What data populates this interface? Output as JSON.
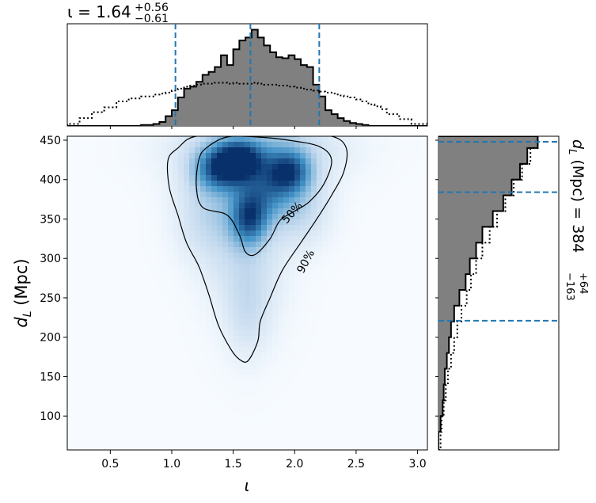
{
  "chart_data": {
    "type": "corner",
    "title_parts": {
      "symbol": "ι = 1.64",
      "upper": "+0.56",
      "lower": "−0.61"
    },
    "xlabel": "ι",
    "ylabel_main": "d",
    "ylabel_sub": "L",
    "ylabel_units": "(Mpc)",
    "right_label_parts": {
      "prefix_main": "d",
      "prefix_sub": "L",
      "prefix_rest": " (Mpc) = 384",
      "upper": "+64",
      "lower": "−163"
    },
    "xlim": [
      0.15,
      3.08
    ],
    "ylim": [
      57,
      455
    ],
    "xticks": [
      0.5,
      1.0,
      1.5,
      2.0,
      2.5,
      3.0
    ],
    "xtick_labels": [
      "0.5",
      "1.0",
      "1.5",
      "2.0",
      "2.5",
      "3.0"
    ],
    "yticks": [
      100,
      150,
      200,
      250,
      300,
      350,
      400,
      450
    ],
    "ytick_labels": [
      "100",
      "150",
      "200",
      "250",
      "300",
      "350",
      "400",
      "450"
    ],
    "iota_quantiles": [
      1.03,
      1.64,
      2.2
    ],
    "dl_quantiles": [
      221,
      384,
      448
    ],
    "contour_labels": [
      "50%",
      "90%"
    ],
    "contour_50": [
      [
        1.28,
        440
      ],
      [
        1.45,
        454
      ],
      [
        1.7,
        454
      ],
      [
        1.95,
        450
      ],
      [
        2.2,
        442
      ],
      [
        2.3,
        425
      ],
      [
        2.24,
        395
      ],
      [
        2.12,
        372
      ],
      [
        2.0,
        360
      ],
      [
        1.88,
        348
      ],
      [
        1.8,
        325
      ],
      [
        1.68,
        305
      ],
      [
        1.6,
        308
      ],
      [
        1.55,
        330
      ],
      [
        1.45,
        355
      ],
      [
        1.25,
        365
      ],
      [
        1.2,
        392
      ],
      [
        1.22,
        425
      ]
    ],
    "contour_90": [
      [
        1.05,
        440
      ],
      [
        1.2,
        455
      ],
      [
        1.6,
        455
      ],
      [
        2.0,
        455
      ],
      [
        2.3,
        455
      ],
      [
        2.42,
        440
      ],
      [
        2.4,
        410
      ],
      [
        2.3,
        380
      ],
      [
        2.18,
        350
      ],
      [
        2.05,
        320
      ],
      [
        1.9,
        285
      ],
      [
        1.8,
        250
      ],
      [
        1.72,
        220
      ],
      [
        1.7,
        195
      ],
      [
        1.62,
        170
      ],
      [
        1.55,
        172
      ],
      [
        1.48,
        185
      ],
      [
        1.38,
        215
      ],
      [
        1.3,
        255
      ],
      [
        1.22,
        290
      ],
      [
        1.12,
        320
      ],
      [
        1.05,
        355
      ],
      [
        0.98,
        390
      ],
      [
        0.97,
        425
      ]
    ],
    "iota_hist_bins": [
      0.15,
      0.25,
      0.35,
      0.45,
      0.55,
      0.65,
      0.75,
      0.85,
      0.9,
      0.95,
      1.0,
      1.05,
      1.1,
      1.15,
      1.2,
      1.25,
      1.3,
      1.35,
      1.4,
      1.45,
      1.5,
      1.55,
      1.6,
      1.65,
      1.7,
      1.75,
      1.8,
      1.85,
      1.9,
      1.95,
      2.0,
      2.05,
      2.1,
      2.15,
      2.2,
      2.25,
      2.3,
      2.35,
      2.4,
      2.45,
      2.5,
      2.55,
      2.6,
      2.65,
      2.7,
      2.75,
      2.85,
      2.95,
      3.08
    ],
    "iota_posterior_density": [
      0,
      0,
      0,
      0,
      0,
      0,
      0.01,
      0.02,
      0.04,
      0.1,
      0.16,
      0.29,
      0.38,
      0.4,
      0.45,
      0.52,
      0.55,
      0.6,
      0.72,
      0.62,
      0.78,
      0.87,
      0.9,
      0.98,
      0.9,
      0.82,
      0.75,
      0.7,
      0.69,
      0.72,
      0.68,
      0.62,
      0.6,
      0.42,
      0.3,
      0.16,
      0.12,
      0.08,
      0.05,
      0.03,
      0.02,
      0.01,
      0,
      0,
      0,
      0,
      0,
      0
    ],
    "iota_prior_density": [
      0.02,
      0.08,
      0.14,
      0.19,
      0.25,
      0.28,
      0.3,
      0.32,
      0.33,
      0.34,
      0.36,
      0.38,
      0.4,
      0.41,
      0.42,
      0.43,
      0.43,
      0.44,
      0.44,
      0.43,
      0.44,
      0.43,
      0.43,
      0.44,
      0.43,
      0.42,
      0.42,
      0.41,
      0.41,
      0.4,
      0.39,
      0.38,
      0.37,
      0.36,
      0.35,
      0.34,
      0.33,
      0.31,
      0.3,
      0.29,
      0.27,
      0.25,
      0.22,
      0.2,
      0.17,
      0.12,
      0.07,
      0.02
    ],
    "dl_hist_bins": [
      57,
      80,
      100,
      120,
      140,
      160,
      180,
      200,
      220,
      240,
      260,
      280,
      300,
      320,
      340,
      360,
      380,
      400,
      420,
      440,
      455
    ],
    "dl_posterior_density": [
      0.0,
      0.02,
      0.04,
      0.05,
      0.06,
      0.08,
      0.1,
      0.12,
      0.15,
      0.2,
      0.26,
      0.3,
      0.36,
      0.42,
      0.52,
      0.62,
      0.7,
      0.78,
      0.85,
      0.95
    ],
    "dl_prior_density": [
      0.02,
      0.03,
      0.05,
      0.07,
      0.09,
      0.12,
      0.15,
      0.18,
      0.22,
      0.27,
      0.31,
      0.36,
      0.42,
      0.49,
      0.56,
      0.64,
      0.72,
      0.8,
      0.88,
      0.95
    ],
    "density_blobs": [
      {
        "x": 1.55,
        "y": 425,
        "sx": 0.13,
        "sy": 16,
        "w": 1.0
      },
      {
        "x": 1.4,
        "y": 412,
        "sx": 0.14,
        "sy": 18,
        "w": 0.75
      },
      {
        "x": 1.95,
        "y": 410,
        "sx": 0.12,
        "sy": 18,
        "w": 0.85
      },
      {
        "x": 1.63,
        "y": 350,
        "sx": 0.1,
        "sy": 22,
        "w": 0.8
      },
      {
        "x": 1.75,
        "y": 385,
        "sx": 0.16,
        "sy": 25,
        "w": 0.55
      },
      {
        "x": 1.62,
        "y": 300,
        "sx": 0.22,
        "sy": 70,
        "w": 0.25
      },
      {
        "x": 1.62,
        "y": 230,
        "sx": 0.12,
        "sy": 40,
        "w": 0.15
      },
      {
        "x": 1.3,
        "y": 360,
        "sx": 0.2,
        "sy": 45,
        "w": 0.3
      },
      {
        "x": 2.05,
        "y": 365,
        "sx": 0.18,
        "sy": 35,
        "w": 0.3
      },
      {
        "x": 1.7,
        "y": 440,
        "sx": 0.45,
        "sy": 30,
        "w": 0.4
      }
    ],
    "colors": {
      "hist_fill": "#808080",
      "quantile": "#1f77b4",
      "contour": "#000000"
    }
  }
}
